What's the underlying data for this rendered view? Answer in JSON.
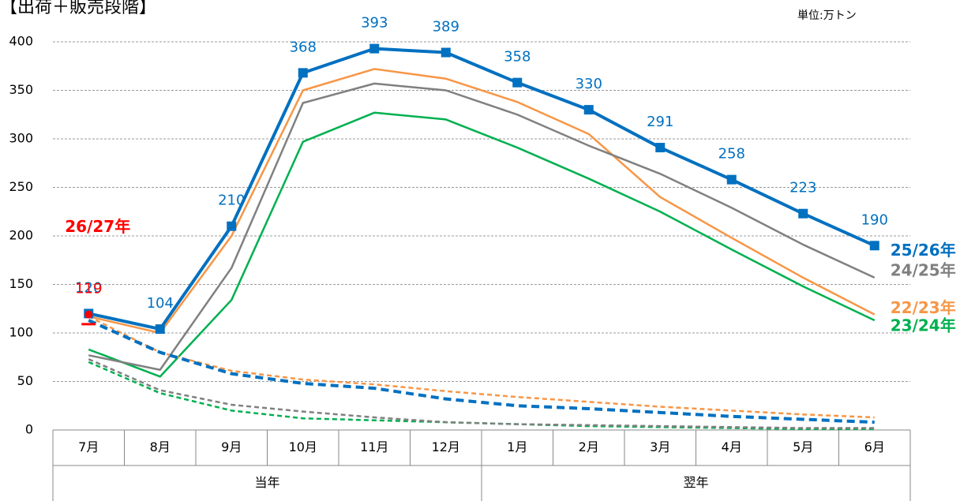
{
  "chart_data": {
    "type": "line",
    "title": "【出荷＋販売段階】",
    "unit": "単位:万トン",
    "categories": [
      "7月",
      "8月",
      "9月",
      "10月",
      "11月",
      "12月",
      "1月",
      "2月",
      "3月",
      "4月",
      "5月",
      "6月"
    ],
    "groups": [
      {
        "label": "当年",
        "start": 0,
        "end": 5
      },
      {
        "label": "翌年",
        "start": 6,
        "end": 11
      }
    ],
    "ylim": [
      0,
      400
    ],
    "yticks": [
      0,
      50,
      100,
      150,
      200,
      250,
      300,
      350,
      400
    ],
    "grid": true,
    "series": [
      {
        "name": "22/23年",
        "color": "#f79646",
        "values": [
          117,
          100,
          200,
          350,
          372,
          362,
          338,
          305,
          240,
          198,
          157,
          119
        ]
      },
      {
        "name": "23/24年",
        "color": "#00b050",
        "values": [
          83,
          55,
          134,
          297,
          327,
          320,
          291,
          259,
          225,
          186,
          148,
          113
        ]
      },
      {
        "name": "24/25年",
        "color": "#808080",
        "values": [
          77,
          62,
          167,
          337,
          357,
          350,
          325,
          293,
          264,
          229,
          191,
          157
        ]
      },
      {
        "color": "#f79646",
        "dash": true,
        "values": [
          117,
          80,
          61,
          52,
          47,
          40,
          34,
          29,
          24,
          20,
          16,
          13
        ]
      },
      {
        "color": "#00b050",
        "dash": true,
        "values": [
          70,
          38,
          20,
          12,
          10,
          8,
          6,
          4,
          3,
          2,
          1,
          1
        ]
      },
      {
        "color": "#808080",
        "dash": true,
        "values": [
          73,
          41,
          26,
          19,
          13,
          8,
          6,
          5,
          4,
          3,
          2,
          2
        ]
      },
      {
        "color": "#0070c0",
        "dash": true,
        "thick": true,
        "values": [
          113,
          80,
          58,
          48,
          43,
          32,
          25,
          22,
          18,
          14,
          11,
          8
        ]
      },
      {
        "name": "25/26年",
        "color": "#0070c0",
        "thick": true,
        "marker": "square",
        "show_labels": true,
        "values": [
          120,
          104,
          210,
          368,
          393,
          389,
          358,
          330,
          291,
          258,
          223,
          190
        ]
      },
      {
        "name": "26/27年",
        "color": "#ff0000",
        "marker": "circle",
        "show_labels": true,
        "values": [
          119,
          null,
          null,
          null,
          null,
          null,
          null,
          null,
          null,
          null,
          null,
          null
        ]
      },
      {
        "color": "#ff0000",
        "marker": "dash",
        "values": [
          109,
          null,
          null,
          null,
          null,
          null,
          null,
          null,
          null,
          null,
          null,
          null
        ]
      }
    ]
  }
}
